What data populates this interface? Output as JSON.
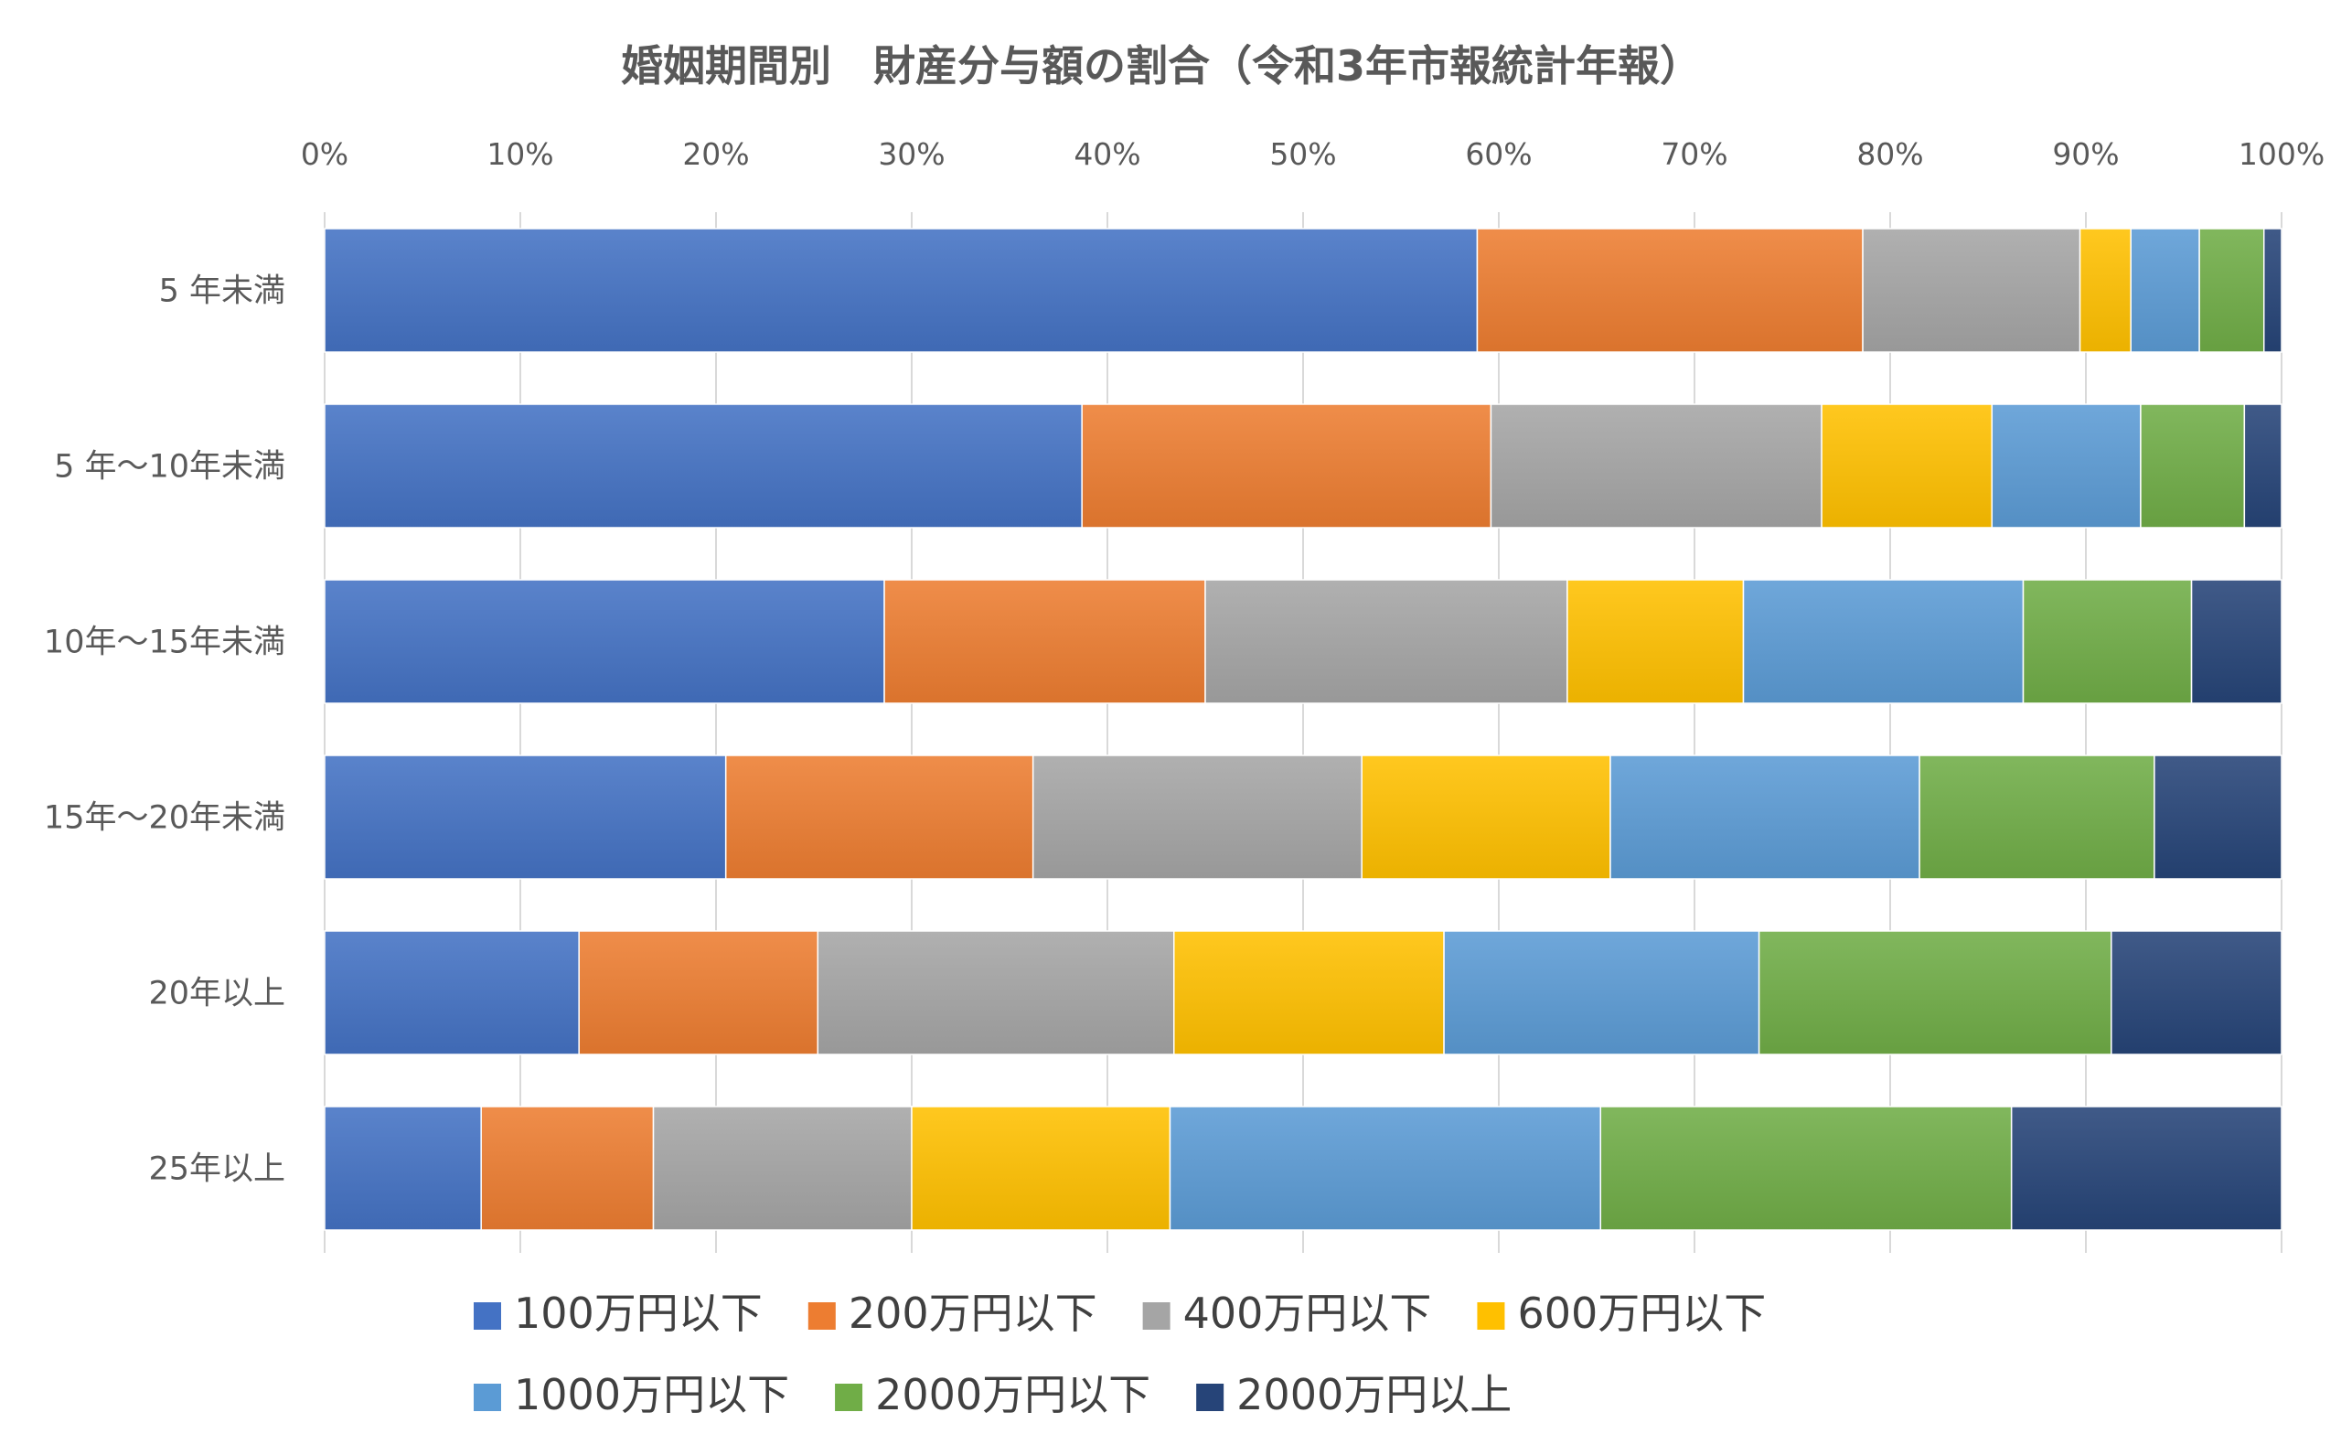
{
  "chart_data": {
    "type": "bar",
    "orientation": "horizontal",
    "stacked": "percent",
    "title": "婚姻期間別　財産分与額の割合（令和3年市報統計年報）",
    "xlabel": "",
    "ylabel": "",
    "xlim": [
      0,
      100
    ],
    "x_tick_labels": [
      "0%",
      "10%",
      "20%",
      "30%",
      "40%",
      "50%",
      "60%",
      "70%",
      "80%",
      "90%",
      "100%"
    ],
    "grid": true,
    "legend_position": "bottom",
    "categories": [
      "5 年未満",
      "5 年～10年未満",
      "10年～15年未満",
      "15年～20年未満",
      "20年以上",
      "25年以上"
    ],
    "series": [
      {
        "name": "100万円以下",
        "color": "#4472c4",
        "values": [
          58.9,
          38.7,
          28.6,
          20.5,
          13.0,
          8.0
        ]
      },
      {
        "name": "200万円以下",
        "color": "#ed7d31",
        "values": [
          19.7,
          20.9,
          16.4,
          15.7,
          12.2,
          8.8
        ]
      },
      {
        "name": "400万円以下",
        "color": "#a5a5a5",
        "values": [
          11.1,
          16.9,
          18.5,
          16.8,
          18.2,
          13.2
        ]
      },
      {
        "name": "600万円以下",
        "color": "#ffc000",
        "values": [
          2.6,
          8.7,
          9.0,
          12.7,
          13.8,
          13.2
        ]
      },
      {
        "name": "1000万円以下",
        "color": "#5b9bd5",
        "values": [
          3.5,
          7.6,
          14.3,
          15.8,
          16.1,
          22.0
        ]
      },
      {
        "name": "2000万円以下",
        "color": "#70ad47",
        "values": [
          3.3,
          5.3,
          8.6,
          12.0,
          18.0,
          21.0
        ]
      },
      {
        "name": "2000万円以上",
        "color": "#264478",
        "values": [
          0.9,
          1.9,
          4.6,
          6.5,
          8.7,
          13.8
        ]
      }
    ]
  }
}
